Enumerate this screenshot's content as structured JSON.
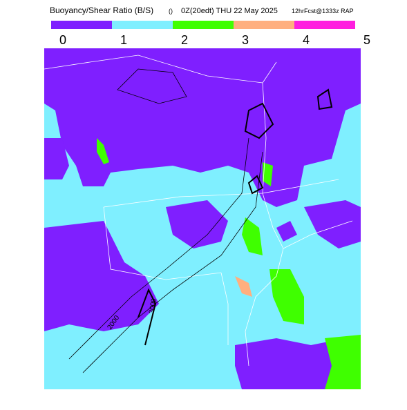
{
  "header": {
    "title": "Buoyancy/Shear Ratio (B/S)",
    "units": "()",
    "valid": "0Z(20edt) THU 22 May 2025",
    "model": "12hrFcst@1333z RAP"
  },
  "colorbar": {
    "ticks": [
      0,
      1,
      2,
      3,
      4,
      5
    ],
    "colors": [
      "#7f1fff",
      "#7fefff",
      "#3fff00",
      "#ffaf7f",
      "#ff1fdf"
    ]
  },
  "contour_labels": [
    "2000",
    "3000"
  ]
}
